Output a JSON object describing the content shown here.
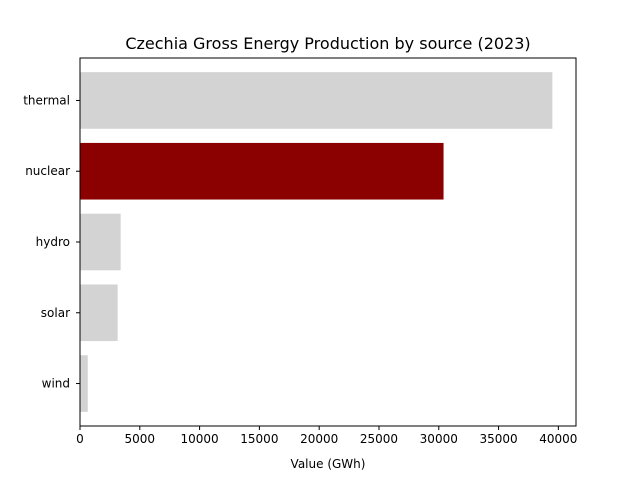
{
  "chart_data": {
    "type": "bar",
    "orientation": "horizontal",
    "title": "Czechia Gross Energy Production by source (2023)",
    "xlabel": "Value (GWh)",
    "ylabel": "",
    "categories": [
      "thermal",
      "nuclear",
      "hydro",
      "solar",
      "wind"
    ],
    "values": [
      39500,
      30400,
      3400,
      3150,
      650
    ],
    "bar_colors": [
      "#d3d3d3",
      "#8b0000",
      "#d3d3d3",
      "#d3d3d3",
      "#d3d3d3"
    ],
    "highlight": "nuclear",
    "xlim": [
      0,
      41475
    ],
    "xticks": [
      0,
      5000,
      10000,
      15000,
      20000,
      25000,
      30000,
      35000,
      40000
    ],
    "xtick_labels": [
      "0",
      "5000",
      "10000",
      "15000",
      "20000",
      "25000",
      "30000",
      "35000",
      "40000"
    ],
    "grid": false,
    "legend": "none"
  }
}
